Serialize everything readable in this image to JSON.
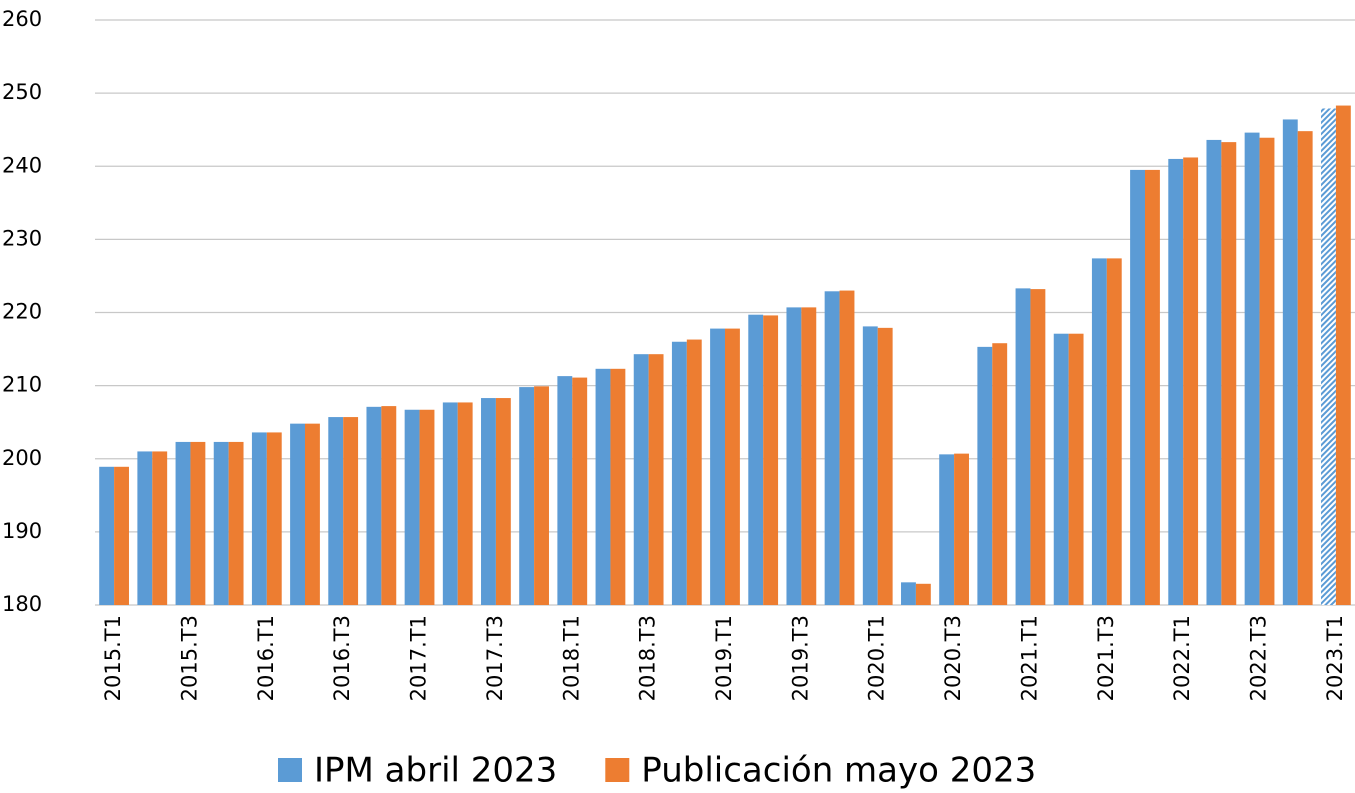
{
  "chart_data": {
    "type": "bar",
    "categories": [
      "2015.T1",
      null,
      "2015.T3",
      null,
      "2016.T1",
      null,
      "2016.T3",
      null,
      "2017.T1",
      null,
      "2017.T3",
      null,
      "2018.T1",
      null,
      "2018.T3",
      null,
      "2019.T1",
      null,
      "2019.T3",
      null,
      "2020.T1",
      null,
      "2020.T3",
      null,
      "2021.T1",
      null,
      "2021.T3",
      null,
      "2022.T1",
      null,
      "2022.T3",
      null,
      "2023.T1"
    ],
    "series": [
      {
        "name": "IPM abril 2023",
        "color": "#5b9bd5",
        "hatch_last": true,
        "values": [
          198.9,
          201.0,
          202.3,
          202.3,
          203.6,
          204.8,
          205.7,
          207.1,
          206.7,
          207.7,
          208.3,
          209.8,
          211.3,
          212.3,
          214.3,
          216.0,
          217.8,
          219.7,
          220.7,
          222.9,
          218.1,
          183.1,
          200.6,
          215.3,
          223.3,
          217.1,
          227.4,
          239.5,
          241.0,
          243.6,
          244.6,
          246.4,
          247.9
        ]
      },
      {
        "name": "Publicación mayo 2023",
        "color": "#ed7d31",
        "values": [
          198.9,
          201.0,
          202.3,
          202.3,
          203.6,
          204.8,
          205.7,
          207.2,
          206.7,
          207.7,
          208.3,
          209.9,
          211.1,
          212.3,
          214.3,
          216.3,
          217.8,
          219.6,
          220.7,
          223.0,
          217.9,
          182.9,
          200.7,
          215.8,
          223.2,
          217.1,
          227.4,
          239.5,
          241.2,
          243.3,
          243.9,
          244.8,
          248.3
        ]
      }
    ],
    "ylim": [
      180,
      260
    ],
    "yticks": [
      180,
      190,
      200,
      210,
      220,
      230,
      240,
      250,
      260
    ],
    "grid": true,
    "legend": "bottom"
  }
}
